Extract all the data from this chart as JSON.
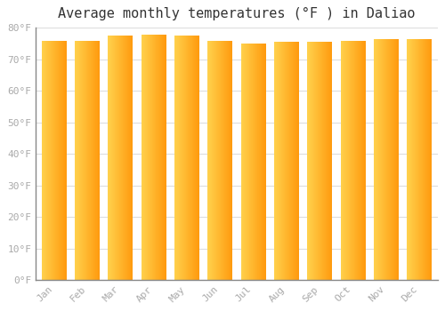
{
  "months": [
    "Jan",
    "Feb",
    "Mar",
    "Apr",
    "May",
    "Jun",
    "Jul",
    "Aug",
    "Sep",
    "Oct",
    "Nov",
    "Dec"
  ],
  "values": [
    76.0,
    76.0,
    77.5,
    78.0,
    77.5,
    76.0,
    75.0,
    75.5,
    75.5,
    76.0,
    76.5,
    76.5
  ],
  "bar_color_left": "#FFD055",
  "bar_color_right": "#FFA010",
  "background_color": "#ffffff",
  "plot_bg_color": "#ffffff",
  "title": "Average monthly temperatures (°F ) in Daliao",
  "title_fontsize": 11,
  "ylim": [
    0,
    80
  ],
  "yticks": [
    0,
    10,
    20,
    30,
    40,
    50,
    60,
    70,
    80
  ],
  "ytick_labels": [
    "0°F",
    "10°F",
    "20°F",
    "30°F",
    "40°F",
    "50°F",
    "60°F",
    "70°F",
    "80°F"
  ],
  "grid_color": "#dddddd",
  "label_color": "#aaaaaa",
  "bar_width": 0.75
}
